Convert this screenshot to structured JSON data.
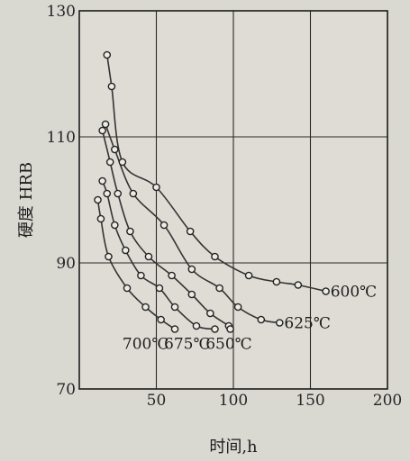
{
  "chart_data": {
    "type": "line",
    "title": "",
    "xlabel": "时间,h",
    "ylabel": "硬度 HRB",
    "xlim": [
      0,
      200
    ],
    "ylim": [
      70,
      130
    ],
    "xticks": [
      0,
      50,
      100,
      150,
      200
    ],
    "xtick_labels": [
      "",
      "50",
      "100",
      "150",
      "200"
    ],
    "yticks": [
      70,
      90,
      110,
      130
    ],
    "ytick_labels": [
      "70",
      "90",
      "110",
      "130"
    ],
    "grid": true,
    "legend": "none",
    "series": [
      {
        "name": "600℃",
        "color": "#333333",
        "points": [
          [
            18,
            123
          ],
          [
            21,
            118
          ],
          [
            28,
            106
          ],
          [
            50,
            102
          ],
          [
            72,
            95
          ],
          [
            88,
            91
          ],
          [
            110,
            88
          ],
          [
            128,
            87
          ],
          [
            142,
            86.5
          ],
          [
            160,
            85.5
          ]
        ],
        "label_at": [
          163,
          85.5
        ]
      },
      {
        "name": "625℃",
        "color": "#333333",
        "points": [
          [
            17,
            112
          ],
          [
            23,
            108
          ],
          [
            35,
            101
          ],
          [
            55,
            96
          ],
          [
            73,
            89
          ],
          [
            91,
            86
          ],
          [
            103,
            83
          ],
          [
            118,
            81
          ],
          [
            130,
            80.5
          ]
        ],
        "label_at": [
          133,
          80.5
        ]
      },
      {
        "name": "650℃",
        "color": "#333333",
        "points": [
          [
            15,
            111
          ],
          [
            20,
            106
          ],
          [
            25,
            101
          ],
          [
            33,
            95
          ],
          [
            45,
            91
          ],
          [
            60,
            88
          ],
          [
            73,
            85
          ],
          [
            85,
            82
          ],
          [
            97,
            80
          ],
          [
            98,
            79.5
          ]
        ],
        "label_at": [
          82,
          77.2
        ]
      },
      {
        "name": "675℃",
        "color": "#333333",
        "points": [
          [
            15,
            103
          ],
          [
            18,
            101
          ],
          [
            23,
            96
          ],
          [
            30,
            92
          ],
          [
            40,
            88
          ],
          [
            52,
            86
          ],
          [
            62,
            83
          ],
          [
            76,
            80
          ],
          [
            88,
            79.5
          ]
        ],
        "label_at": [
          55,
          77.2
        ]
      },
      {
        "name": "700℃",
        "color": "#333333",
        "points": [
          [
            12,
            100
          ],
          [
            14,
            97
          ],
          [
            19,
            91
          ],
          [
            31,
            86
          ],
          [
            43,
            83
          ],
          [
            53,
            81
          ],
          [
            62,
            79.5
          ]
        ],
        "label_at": [
          28,
          77.2
        ]
      }
    ]
  }
}
